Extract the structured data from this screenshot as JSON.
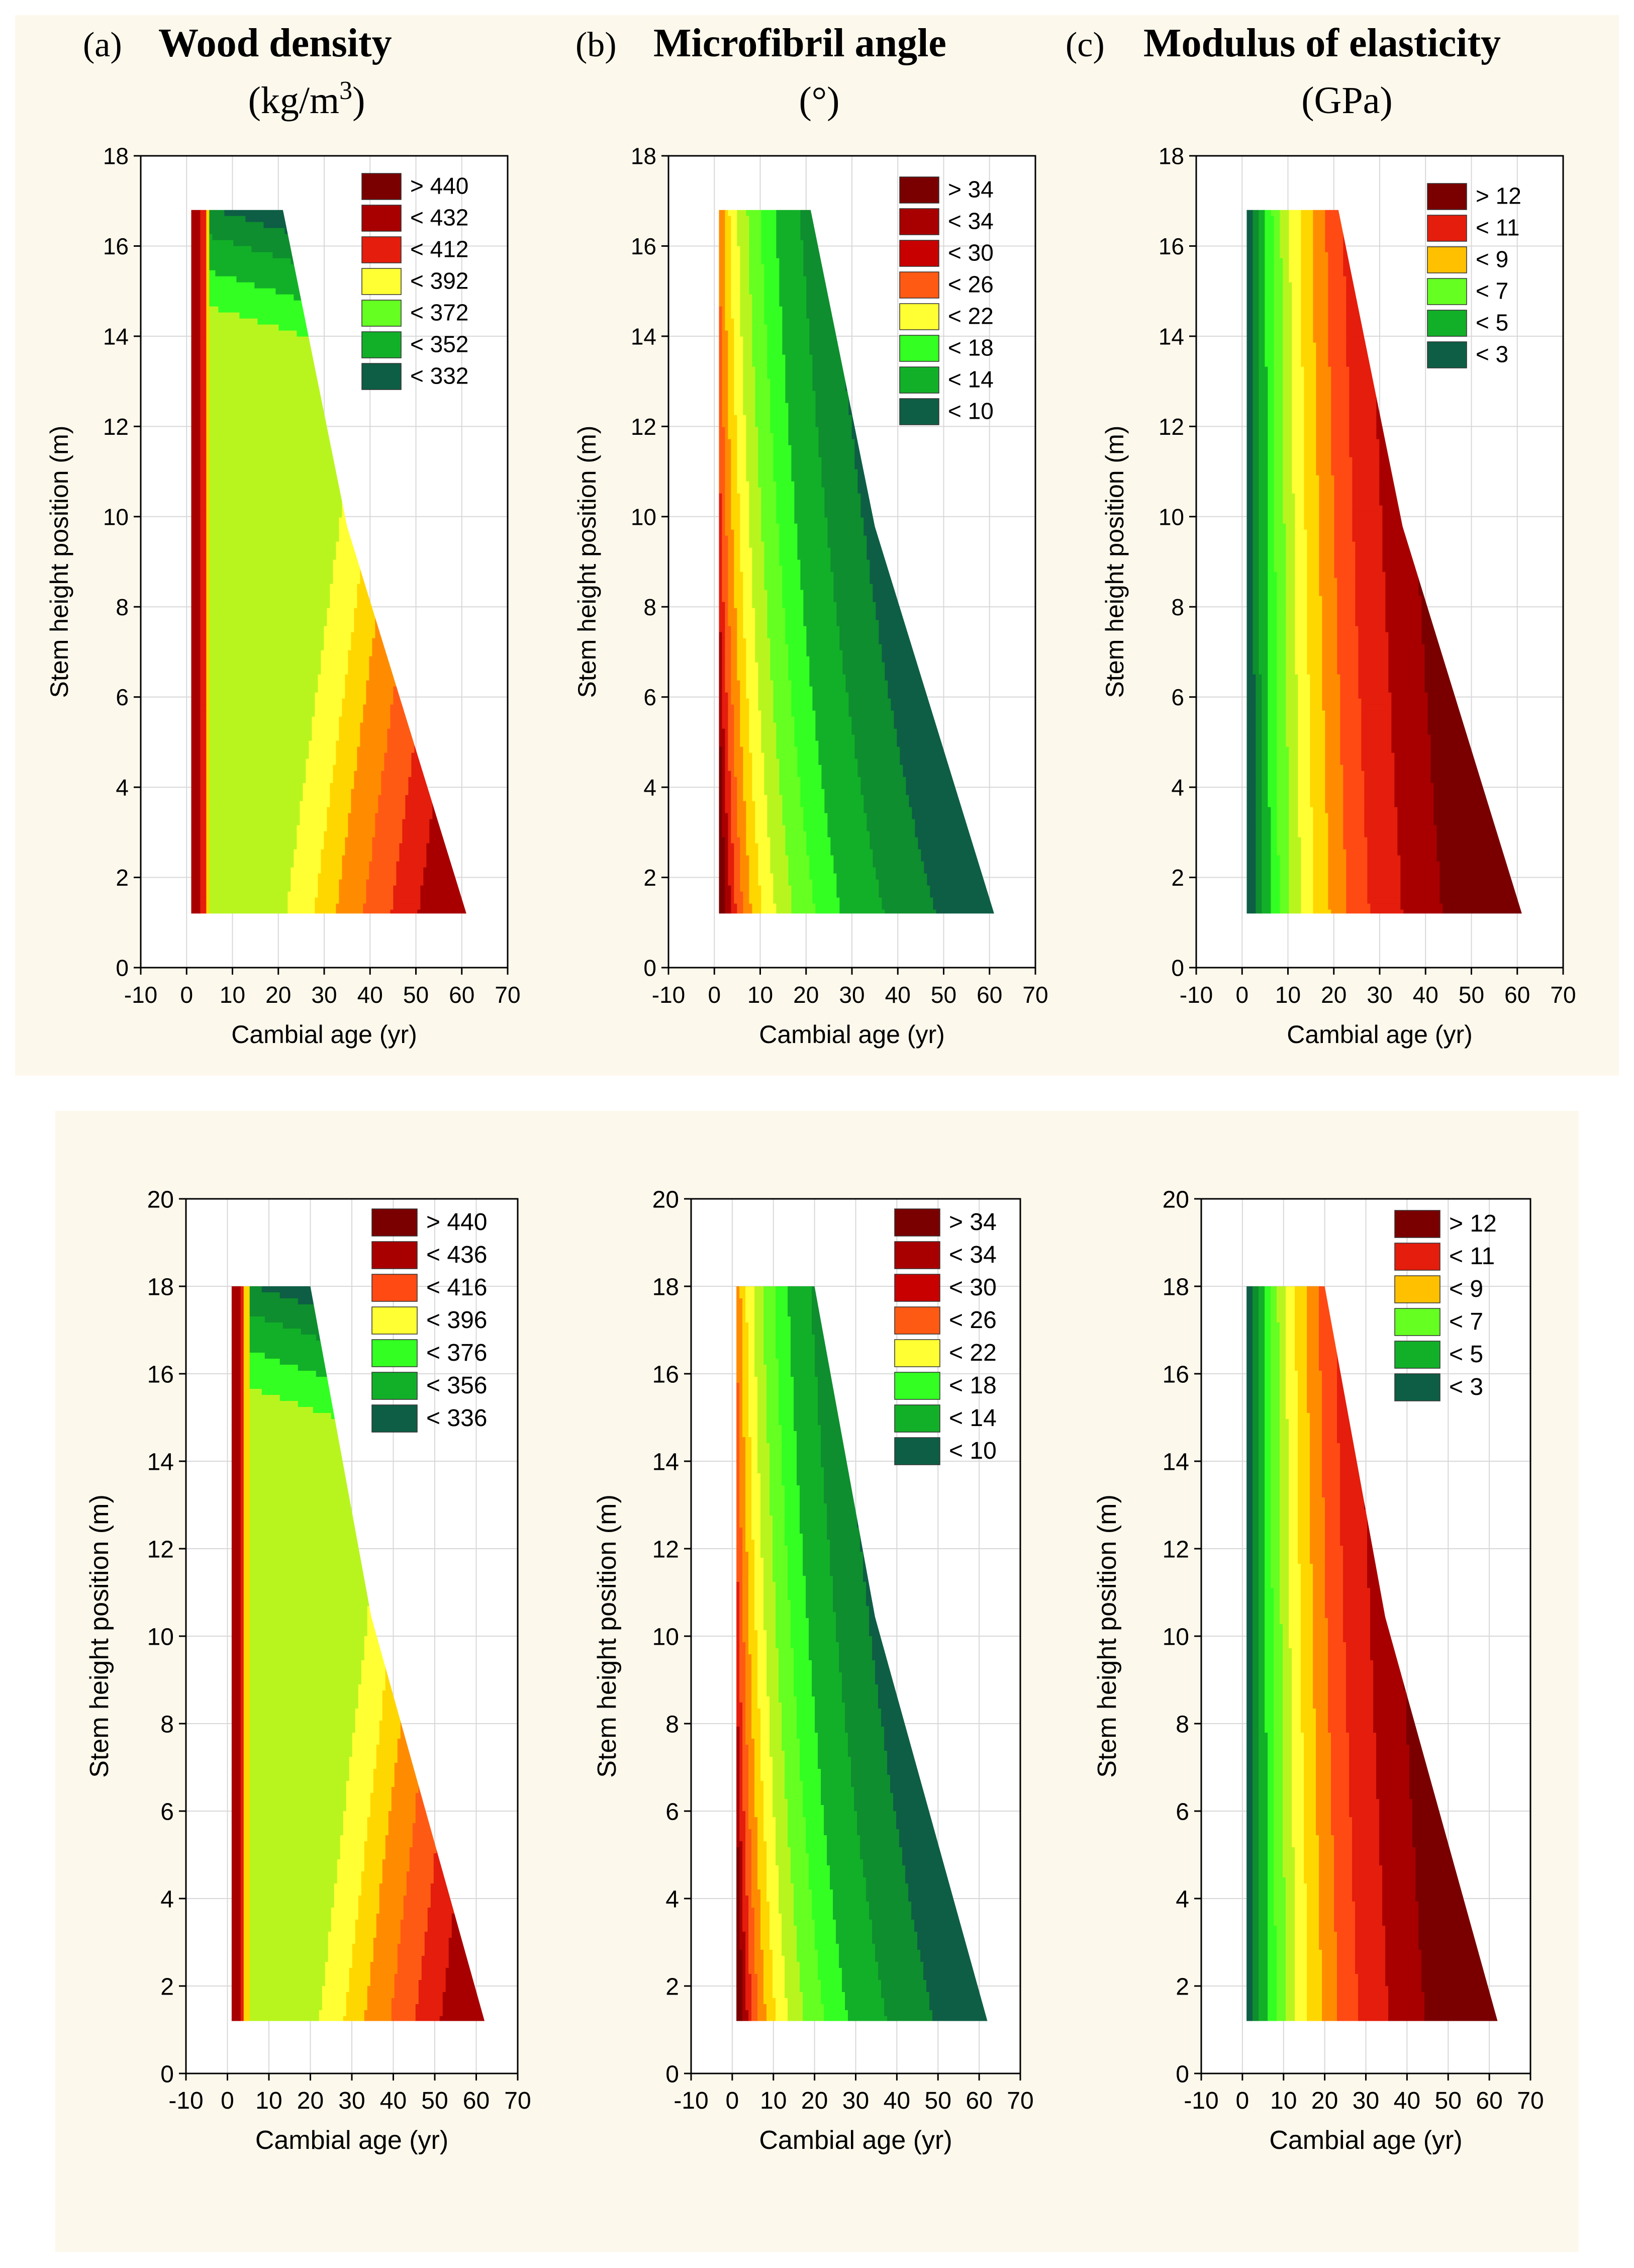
{
  "colors": {
    "band_bg": "#fdf8ec",
    "c7": "#7a0000",
    "c6": "#a80000",
    "c5": "#e41d0c",
    "c4": "#ff8c00",
    "c3": "#ffd700",
    "c2": "#ffff33",
    "c1": "#b8f51e",
    "c0": "#33ff22",
    "g1": "#12b028",
    "g2": "#0e8e2e",
    "g3": "#0d5e45"
  },
  "headers": [
    {
      "letter": "(a)",
      "title": "Wood density",
      "unit_base": "(kg/m",
      "unit_sup": "3",
      "unit_close": ")"
    },
    {
      "letter": "(b)",
      "title": "Microfibril angle",
      "unit_base": "(°)",
      "unit_sup": "",
      "unit_close": ""
    },
    {
      "letter": "(c)",
      "title": "Modulus of elasticity",
      "unit_base": "(GPa)",
      "unit_sup": "",
      "unit_close": ""
    }
  ],
  "chart_data": [
    {
      "id": "top-density",
      "type": "contour",
      "variable": "Wood density",
      "xlabel": "Cambial age (yr)",
      "ylabel": "Stem height position (m)",
      "xlim": [
        -10,
        70
      ],
      "ylim": [
        0,
        18
      ],
      "xticks": [
        -10,
        0,
        10,
        20,
        30,
        40,
        50,
        60,
        70
      ],
      "yticks": [
        0,
        2,
        4,
        6,
        8,
        10,
        12,
        14,
        16,
        18
      ],
      "legend": [
        "> 440",
        "< 432",
        "< 412",
        "< 392",
        "< 372",
        "< 352",
        "< 332"
      ],
      "legend_colors": [
        "#7a0000",
        "#a80000",
        "#e41d0c",
        "#ffff33",
        "#66ff22",
        "#12b028",
        "#0d5e45"
      ],
      "stem_bounds": {
        "x_left": 1,
        "y_bottom": 1.2,
        "y_top": 16.8,
        "top_right_x": 21,
        "bottom_right_x": 61
      }
    },
    {
      "id": "top-mfa",
      "type": "contour",
      "variable": "Microfibril angle",
      "xlabel": "Cambial age (yr)",
      "ylabel": "Stem height position (m)",
      "xlim": [
        -10,
        70
      ],
      "ylim": [
        0,
        18
      ],
      "xticks": [
        -10,
        0,
        10,
        20,
        30,
        40,
        50,
        60,
        70
      ],
      "yticks": [
        0,
        2,
        4,
        6,
        8,
        10,
        12,
        14,
        16,
        18
      ],
      "legend": [
        "> 34",
        "< 34",
        "< 30",
        "< 26",
        "< 22",
        "< 18",
        "< 14",
        "< 10"
      ],
      "legend_colors": [
        "#7a0000",
        "#a80000",
        "#c80000",
        "#ff5a14",
        "#ffff33",
        "#33ff22",
        "#12b028",
        "#0d5e45"
      ],
      "stem_bounds": {
        "x_left": 1,
        "y_bottom": 1.2,
        "y_top": 16.8,
        "top_right_x": 21,
        "bottom_right_x": 61
      }
    },
    {
      "id": "top-moe",
      "type": "contour",
      "variable": "Modulus of elasticity",
      "xlabel": "Cambial age (yr)",
      "ylabel": "Stem height position (m)",
      "xlim": [
        -10,
        70
      ],
      "ylim": [
        0,
        18
      ],
      "xticks": [
        -10,
        0,
        10,
        20,
        30,
        40,
        50,
        60,
        70
      ],
      "yticks": [
        0,
        2,
        4,
        6,
        8,
        10,
        12,
        14,
        16,
        18
      ],
      "legend": [
        "> 12",
        "< 11",
        "< 9",
        "< 7",
        "< 5",
        "< 3"
      ],
      "legend_colors": [
        "#7a0000",
        "#e41d0c",
        "#ffc000",
        "#66ff22",
        "#12b028",
        "#0d5e45"
      ],
      "stem_bounds": {
        "x_left": 1,
        "y_bottom": 1.2,
        "y_top": 16.8,
        "top_right_x": 21,
        "bottom_right_x": 61
      }
    },
    {
      "id": "bottom-density",
      "type": "contour",
      "variable": "Wood density",
      "xlabel": "Cambial age (yr)",
      "ylabel": "Stem height position (m)",
      "xlim": [
        -10,
        70
      ],
      "ylim": [
        0,
        20
      ],
      "xticks": [
        -10,
        0,
        10,
        20,
        30,
        40,
        50,
        60,
        70
      ],
      "yticks": [
        0,
        2,
        4,
        6,
        8,
        10,
        12,
        14,
        16,
        18,
        20
      ],
      "legend": [
        "> 440",
        "< 436",
        "< 416",
        "< 396",
        "< 376",
        "< 356",
        "< 336"
      ],
      "legend_colors": [
        "#7a0000",
        "#a80000",
        "#ff4a14",
        "#ffff33",
        "#33ff22",
        "#12b028",
        "#0d5e45"
      ],
      "stem_bounds": {
        "x_left": 1,
        "y_bottom": 1.2,
        "y_top": 18,
        "top_right_x": 20,
        "bottom_right_x": 62
      }
    },
    {
      "id": "bottom-mfa",
      "type": "contour",
      "variable": "Microfibril angle",
      "xlabel": "Cambial age (yr)",
      "ylabel": "Stem height position (m)",
      "xlim": [
        -10,
        70
      ],
      "ylim": [
        0,
        20
      ],
      "xticks": [
        -10,
        0,
        10,
        20,
        30,
        40,
        50,
        60,
        70
      ],
      "yticks": [
        0,
        2,
        4,
        6,
        8,
        10,
        12,
        14,
        16,
        18,
        20
      ],
      "legend": [
        "> 34",
        "< 34",
        "< 30",
        "< 26",
        "< 22",
        "< 18",
        "< 14",
        "< 10"
      ],
      "legend_colors": [
        "#7a0000",
        "#a80000",
        "#c80000",
        "#ff5a14",
        "#ffff33",
        "#33ff22",
        "#12b028",
        "#0d5e45"
      ],
      "stem_bounds": {
        "x_left": 1,
        "y_bottom": 1.2,
        "y_top": 18,
        "top_right_x": 20,
        "bottom_right_x": 62
      }
    },
    {
      "id": "bottom-moe",
      "type": "contour",
      "variable": "Modulus of elasticity",
      "xlabel": "Cambial age (yr)",
      "ylabel": "Stem height position (m)",
      "xlim": [
        -10,
        70
      ],
      "ylim": [
        0,
        20
      ],
      "xticks": [
        -10,
        0,
        10,
        20,
        30,
        40,
        50,
        60,
        70
      ],
      "yticks": [
        0,
        2,
        4,
        6,
        8,
        10,
        12,
        14,
        16,
        18,
        20
      ],
      "legend": [
        "> 12",
        "< 11",
        "< 9",
        "< 7",
        "< 5",
        "< 3"
      ],
      "legend_colors": [
        "#7a0000",
        "#e41d0c",
        "#ffc000",
        "#66ff22",
        "#12b028",
        "#0d5e45"
      ],
      "stem_bounds": {
        "x_left": 1,
        "y_bottom": 1.2,
        "y_top": 18,
        "top_right_x": 20,
        "bottom_right_x": 62
      }
    }
  ]
}
